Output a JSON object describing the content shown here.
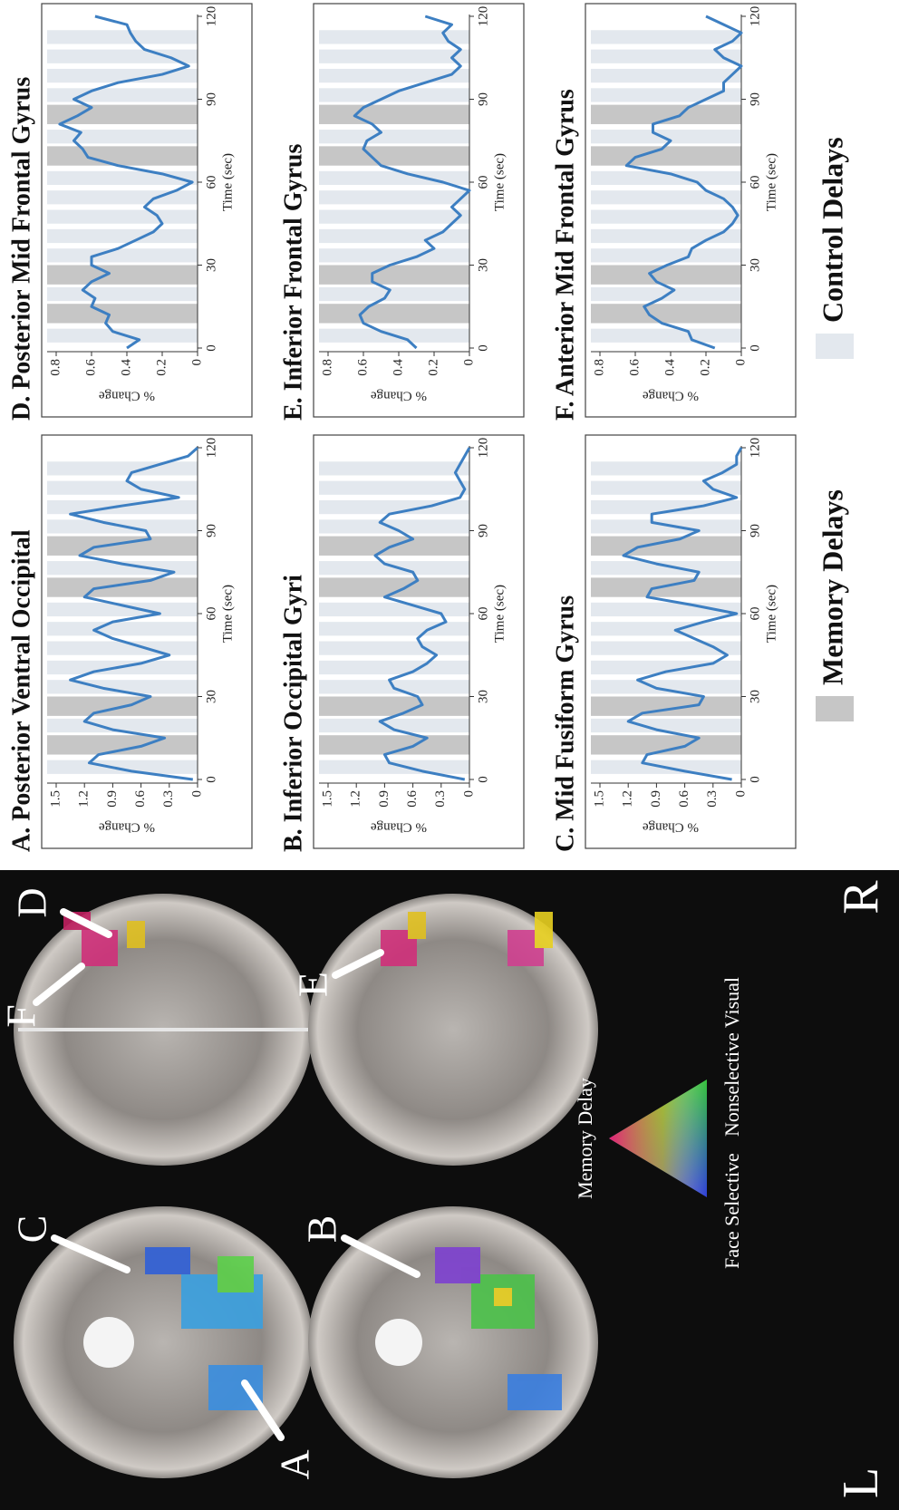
{
  "chart_data": [
    {
      "type": "line",
      "title": "A. Posterior Ventral Occipital",
      "x_label": "Time (sec)",
      "y_label": "% Change",
      "x": [
        0,
        3,
        6,
        9,
        12,
        15,
        18,
        21,
        24,
        27,
        30,
        33,
        36,
        39,
        42,
        45,
        48,
        51,
        54,
        57,
        60,
        63,
        66,
        69,
        72,
        75,
        78,
        81,
        84,
        87,
        90,
        93,
        96,
        99,
        102,
        105,
        108,
        111,
        114,
        117,
        120
      ],
      "xlim": [
        0,
        120
      ],
      "xticks": [
        0,
        30,
        60,
        90,
        120
      ],
      "ylim": [
        0,
        1.5
      ],
      "yticks": [
        0,
        0.3,
        0.6,
        0.9,
        1.2,
        1.5
      ],
      "series": [
        {
          "color": "#3d7fc2",
          "values": [
            0.05,
            0.7,
            1.15,
            1.05,
            0.6,
            0.35,
            0.9,
            1.2,
            1.1,
            0.7,
            0.5,
            1.0,
            1.35,
            1.1,
            0.6,
            0.3,
            0.6,
            0.9,
            1.1,
            0.9,
            0.4,
            0.8,
            1.2,
            1.1,
            0.5,
            0.25,
            0.8,
            1.25,
            1.1,
            0.5,
            0.55,
            1.0,
            1.35,
            0.8,
            0.2,
            0.6,
            0.75,
            0.7,
            0.4,
            0.1,
            0.0
          ]
        }
      ]
    },
    {
      "type": "line",
      "title": "B. Inferior Occipital  Gyri",
      "x_label": "Time (sec)",
      "y_label": "% Change",
      "x": [
        0,
        3,
        6,
        9,
        12,
        15,
        18,
        21,
        24,
        27,
        30,
        33,
        36,
        39,
        42,
        45,
        48,
        51,
        54,
        57,
        60,
        63,
        66,
        69,
        72,
        75,
        78,
        81,
        84,
        87,
        90,
        93,
        96,
        99,
        102,
        105,
        108,
        111,
        114,
        117,
        120
      ],
      "xlim": [
        0,
        120
      ],
      "xticks": [
        0,
        30,
        60,
        90,
        120
      ],
      "ylim": [
        0,
        1.5
      ],
      "yticks": [
        0,
        0.3,
        0.6,
        0.9,
        1.2,
        1.5
      ],
      "series": [
        {
          "color": "#3d7fc2",
          "values": [
            0.05,
            0.5,
            0.85,
            0.9,
            0.6,
            0.45,
            0.8,
            0.95,
            0.7,
            0.5,
            0.55,
            0.8,
            0.85,
            0.6,
            0.45,
            0.35,
            0.5,
            0.55,
            0.45,
            0.25,
            0.3,
            0.6,
            0.9,
            0.7,
            0.55,
            0.6,
            0.9,
            1.0,
            0.85,
            0.6,
            0.75,
            0.95,
            0.85,
            0.4,
            0.1,
            0.05,
            0.1,
            0.15,
            0.1,
            0.05,
            0.0
          ]
        }
      ]
    },
    {
      "type": "line",
      "title": "C. Mid Fusiform Gyrus",
      "x_label": "Time (sec)",
      "y_label": "% Change",
      "x": [
        0,
        3,
        6,
        9,
        12,
        15,
        18,
        21,
        24,
        27,
        30,
        33,
        36,
        39,
        42,
        45,
        48,
        51,
        54,
        57,
        60,
        63,
        66,
        69,
        72,
        75,
        78,
        81,
        84,
        87,
        90,
        93,
        96,
        99,
        102,
        105,
        108,
        111,
        114,
        117,
        120
      ],
      "xlim": [
        0,
        120
      ],
      "xticks": [
        0,
        30,
        60,
        90,
        120
      ],
      "ylim": [
        0,
        1.5
      ],
      "yticks": [
        0,
        0.3,
        0.6,
        0.9,
        1.2,
        1.5
      ],
      "series": [
        {
          "color": "#3d7fc2",
          "values": [
            0.1,
            0.6,
            1.05,
            1.0,
            0.6,
            0.45,
            0.9,
            1.2,
            1.05,
            0.45,
            0.4,
            0.9,
            1.1,
            0.8,
            0.3,
            0.15,
            0.3,
            0.5,
            0.7,
            0.4,
            0.05,
            0.5,
            1.0,
            0.95,
            0.5,
            0.45,
            0.9,
            1.25,
            1.1,
            0.65,
            0.45,
            0.95,
            0.95,
            0.4,
            0.05,
            0.3,
            0.4,
            0.2,
            0.05,
            0.05,
            0.0
          ]
        }
      ]
    },
    {
      "type": "line",
      "title": "D. Posterior Mid Frontal Gyrus",
      "x_label": "Time (sec)",
      "y_label": "% Change",
      "x": [
        0,
        3,
        6,
        9,
        12,
        15,
        18,
        21,
        24,
        27,
        30,
        33,
        36,
        39,
        42,
        45,
        48,
        51,
        54,
        57,
        60,
        63,
        66,
        69,
        72,
        75,
        78,
        81,
        84,
        87,
        90,
        93,
        96,
        99,
        102,
        105,
        108,
        111,
        114,
        117,
        120
      ],
      "xlim": [
        0,
        120
      ],
      "xticks": [
        0,
        30,
        60,
        90,
        120
      ],
      "ylim": [
        0,
        0.8
      ],
      "yticks": [
        0,
        0.2,
        0.4,
        0.6,
        0.8
      ],
      "series": [
        {
          "color": "#3d7fc2",
          "values": [
            0.4,
            0.33,
            0.48,
            0.52,
            0.5,
            0.6,
            0.58,
            0.65,
            0.6,
            0.5,
            0.6,
            0.6,
            0.45,
            0.35,
            0.25,
            0.2,
            0.23,
            0.3,
            0.25,
            0.12,
            0.03,
            0.2,
            0.45,
            0.62,
            0.65,
            0.7,
            0.66,
            0.78,
            0.68,
            0.6,
            0.7,
            0.6,
            0.45,
            0.2,
            0.05,
            0.15,
            0.3,
            0.35,
            0.38,
            0.4,
            0.58
          ]
        }
      ]
    },
    {
      "type": "line",
      "title": "E. Inferior Frontal Gyrus",
      "x_label": "Time (sec)",
      "y_label": "% Change",
      "x": [
        0,
        3,
        6,
        9,
        12,
        15,
        18,
        21,
        24,
        27,
        30,
        33,
        36,
        39,
        42,
        45,
        48,
        51,
        54,
        57,
        60,
        63,
        66,
        69,
        72,
        75,
        78,
        81,
        84,
        87,
        90,
        93,
        96,
        99,
        102,
        105,
        108,
        111,
        114,
        117,
        120
      ],
      "xlim": [
        0,
        120
      ],
      "xticks": [
        0,
        30,
        60,
        90,
        120
      ],
      "ylim": [
        0,
        0.8
      ],
      "yticks": [
        0,
        0.2,
        0.4,
        0.6,
        0.8
      ],
      "series": [
        {
          "color": "#3d7fc2",
          "values": [
            0.3,
            0.35,
            0.5,
            0.6,
            0.62,
            0.57,
            0.48,
            0.45,
            0.55,
            0.55,
            0.45,
            0.3,
            0.2,
            0.25,
            0.15,
            0.1,
            0.05,
            0.1,
            0.05,
            0.0,
            0.15,
            0.35,
            0.5,
            0.55,
            0.6,
            0.58,
            0.5,
            0.55,
            0.65,
            0.6,
            0.5,
            0.4,
            0.25,
            0.1,
            0.05,
            0.1,
            0.05,
            0.12,
            0.15,
            0.1,
            0.25
          ]
        }
      ]
    },
    {
      "type": "line",
      "title": "F. Anterior Mid Frontal Gyrus",
      "x_label": "Time (sec)",
      "y_label": "% Change",
      "x": [
        0,
        3,
        6,
        9,
        12,
        15,
        18,
        21,
        24,
        27,
        30,
        33,
        36,
        39,
        42,
        45,
        48,
        51,
        54,
        57,
        60,
        63,
        66,
        69,
        72,
        75,
        78,
        81,
        84,
        87,
        90,
        93,
        96,
        99,
        102,
        105,
        108,
        111,
        114,
        117,
        120
      ],
      "xlim": [
        0,
        120
      ],
      "xticks": [
        0,
        30,
        60,
        90,
        120
      ],
      "ylim": [
        0,
        0.8
      ],
      "yticks": [
        0,
        0.2,
        0.4,
        0.6,
        0.8
      ],
      "series": [
        {
          "color": "#3d7fc2",
          "values": [
            0.15,
            0.28,
            0.3,
            0.45,
            0.52,
            0.55,
            0.45,
            0.38,
            0.48,
            0.52,
            0.42,
            0.3,
            0.28,
            0.2,
            0.1,
            0.05,
            0.02,
            0.05,
            0.1,
            0.2,
            0.25,
            0.4,
            0.65,
            0.6,
            0.45,
            0.4,
            0.5,
            0.5,
            0.35,
            0.3,
            0.2,
            0.1,
            0.1,
            0.05,
            0.0,
            0.1,
            0.15,
            0.05,
            0.0,
            0.1,
            0.2
          ]
        }
      ]
    }
  ],
  "delay_bands": [
    {
      "name": "Memory Delays",
      "color": "#c6c6c6",
      "intervals": [
        [
          9,
          16
        ],
        [
          23,
          30
        ],
        [
          66,
          73
        ],
        [
          81,
          88
        ]
      ]
    },
    {
      "name": "Control Delays",
      "color": "#e3e8ee",
      "intervals": [
        [
          2,
          7
        ],
        [
          17,
          22
        ],
        [
          31,
          36
        ],
        [
          38,
          43
        ],
        [
          45,
          50
        ],
        [
          52,
          57
        ],
        [
          59,
          64
        ],
        [
          74,
          79
        ],
        [
          89,
          94
        ],
        [
          96,
          101
        ],
        [
          103,
          108
        ],
        [
          110,
          115
        ]
      ]
    }
  ],
  "brain_panel": {
    "side_labels": [
      "L",
      "R"
    ],
    "region_labels": [
      "A",
      "B",
      "C",
      "D",
      "E",
      "F"
    ],
    "triangle_labels": [
      "Memory Delay",
      "Face Selective",
      "Nonselective Visual"
    ]
  }
}
